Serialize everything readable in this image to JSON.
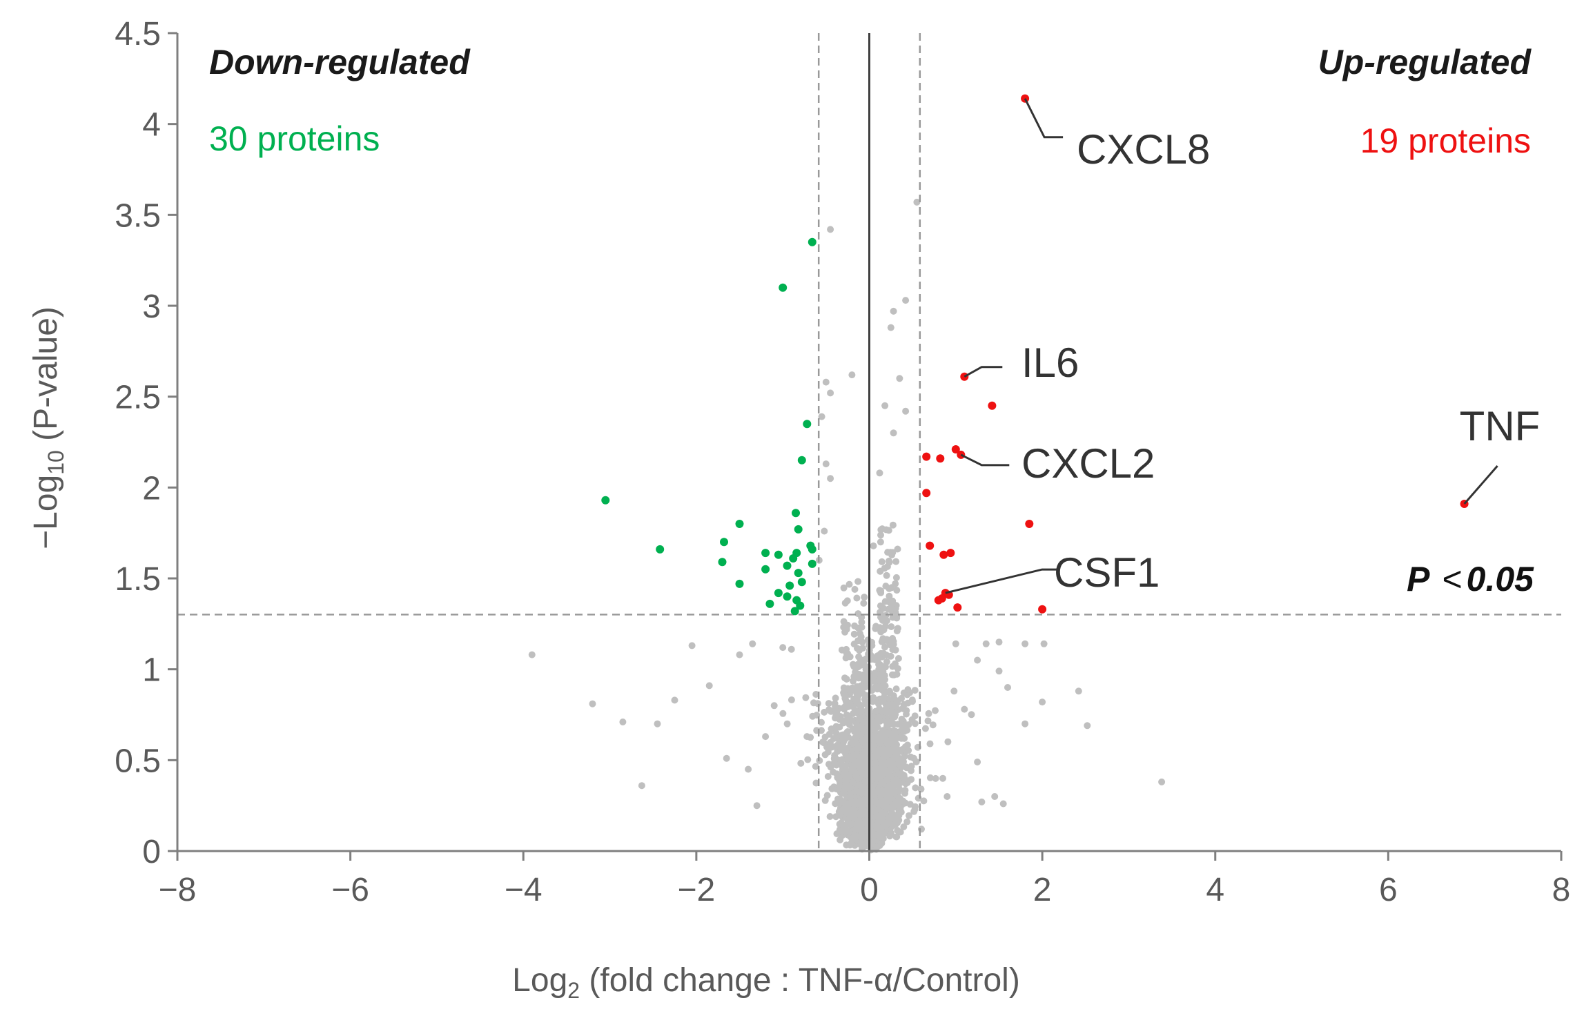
{
  "chart_data": {
    "type": "scatter",
    "title": "",
    "xlabel_prefix": "Log",
    "xlabel_sub": "2",
    "xlabel_suffix": " (fold change : TNF-α/Control)",
    "ylabel_prefix": "−Log",
    "ylabel_sub": "10",
    "ylabel_suffix": " (P-value)",
    "xlim": [
      -8,
      8
    ],
    "ylim": [
      0,
      4.5
    ],
    "xticks": [
      -8,
      -6,
      -4,
      -2,
      0,
      2,
      4,
      6,
      8
    ],
    "xtick_labels": [
      "−8",
      "−6",
      "−4",
      "−2",
      "0",
      "2",
      "4",
      "6",
      "8"
    ],
    "yticks": [
      0,
      0.5,
      1,
      1.5,
      2,
      2.5,
      3,
      3.5,
      4,
      4.5
    ],
    "ytick_labels": [
      "0",
      "0.5",
      "1",
      "1.5",
      "2",
      "2.5",
      "3",
      "3.5",
      "4",
      "4.5"
    ],
    "thresholds": {
      "fc_low": -0.585,
      "fc_high": 0.585,
      "p_line": 1.301
    },
    "labels": {
      "down_title": "Down-regulated",
      "down_count": "30 proteins",
      "up_title": "Up-regulated",
      "up_count": "19 proteins",
      "sig_p": "P",
      "sig_rest": "0.05",
      "sig_op": "<"
    },
    "colors": {
      "down": "#00b050",
      "up": "#ee1111",
      "ns": "#bfbfbf",
      "axis": "#7f7f7f",
      "zero": "#404040"
    },
    "series": [
      {
        "name": "Down-regulated",
        "color": "#00b050",
        "x": [
          -0.66,
          -1.0,
          -0.72,
          -3.05,
          -2.42,
          -0.78,
          -0.85,
          -1.5,
          -0.82,
          -1.68,
          -0.68,
          -0.66,
          -0.84,
          -1.2,
          -1.05,
          -0.88,
          -1.7,
          -0.66,
          -0.95,
          -1.2,
          -0.82,
          -1.5,
          -0.92,
          -1.05,
          -0.78,
          -0.95,
          -1.15,
          -0.84,
          -0.8,
          -0.86
        ],
        "y": [
          3.35,
          3.1,
          2.35,
          1.93,
          1.66,
          2.15,
          1.86,
          1.8,
          1.77,
          1.7,
          1.68,
          1.66,
          1.64,
          1.64,
          1.63,
          1.61,
          1.59,
          1.58,
          1.57,
          1.55,
          1.53,
          1.47,
          1.46,
          1.42,
          1.48,
          1.4,
          1.36,
          1.38,
          1.35,
          1.32
        ]
      },
      {
        "name": "Up-regulated",
        "color": "#ee1111",
        "x": [
          1.8,
          1.1,
          1.42,
          0.66,
          0.82,
          1.0,
          1.06,
          0.66,
          1.85,
          0.7,
          0.86,
          0.94,
          0.88,
          0.84,
          0.92,
          1.02,
          2.0,
          0.8,
          6.88
        ],
        "y": [
          4.14,
          2.61,
          2.45,
          2.17,
          2.16,
          2.21,
          2.18,
          1.97,
          1.8,
          1.68,
          1.63,
          1.64,
          1.42,
          1.39,
          1.41,
          1.34,
          1.33,
          1.38,
          1.91
        ]
      }
    ],
    "annotations": [
      {
        "text": "CXCL8",
        "x": 1.8,
        "y": 4.14
      },
      {
        "text": "IL6",
        "x": 1.1,
        "y": 2.61
      },
      {
        "text": "CXCL2",
        "x": 1.06,
        "y": 2.18
      },
      {
        "text": "CSF1",
        "x": 0.88,
        "y": 1.42
      },
      {
        "text": "TNF",
        "x": 6.88,
        "y": 1.91
      }
    ]
  }
}
